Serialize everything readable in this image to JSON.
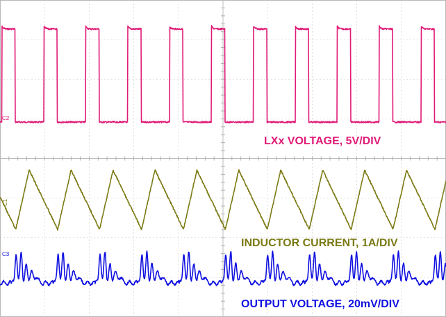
{
  "chart_data": {
    "type": "line",
    "title": "",
    "grid": true,
    "channels": [
      {
        "id": "C2",
        "marker": "C2",
        "label": "LXx VOLTAGE, 5V/DIV",
        "color": "#e01a77",
        "waveform": "square",
        "period_div": 0.94,
        "duty": 0.32,
        "cycles_visible": 10.5,
        "high_level_div": 2.35,
        "low_level_div": 0.0
      },
      {
        "id": "C1",
        "marker": "C1",
        "label": "INDUCTOR CURRENT, 1A/DIV",
        "color": "#7b7a14",
        "waveform": "triangle",
        "period_div": 0.94,
        "peak_to_peak_div": 1.5,
        "peaks_visible": 11
      },
      {
        "id": "C3",
        "marker": "C3",
        "label": "OUTPUT VOLTAGE, 20mV/DIV",
        "color": "#1010e0",
        "waveform": "ripple",
        "period_div": 0.94,
        "peak_to_peak_div": 0.8,
        "ripples_visible": 11
      }
    ],
    "grid_divisions": {
      "x": 10,
      "y": 8
    }
  }
}
